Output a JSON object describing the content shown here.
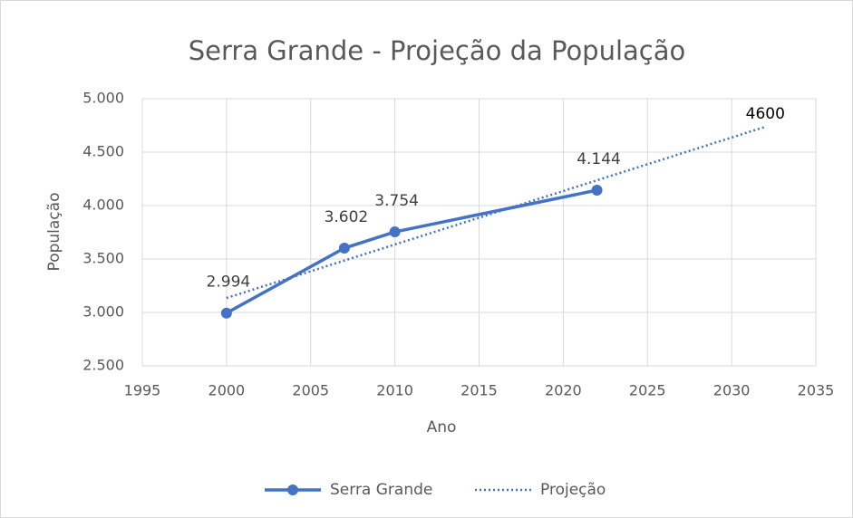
{
  "chart_data": {
    "type": "line",
    "title": "Serra Grande - Projeção da População",
    "x_label": "Ano",
    "y_label": "População",
    "xlim": [
      1995,
      2035
    ],
    "xticks": [
      1995,
      2000,
      2005,
      2010,
      2015,
      2020,
      2025,
      2030,
      2035
    ],
    "ylim": [
      2500,
      5000
    ],
    "yticks": [
      {
        "value": 2500,
        "label": "2.500"
      },
      {
        "value": 3000,
        "label": "3.000"
      },
      {
        "value": 3500,
        "label": "3.500"
      },
      {
        "value": 4000,
        "label": "4.000"
      },
      {
        "value": 4500,
        "label": "4.500"
      },
      {
        "value": 5000,
        "label": "5.000"
      }
    ],
    "grid": true,
    "legend": "bottom",
    "series": [
      {
        "name": "Serra Grande",
        "color": "#4472c4",
        "style": "solid",
        "markers": true,
        "x": [
          2000,
          2007,
          2010,
          2022
        ],
        "values": [
          2994,
          3602,
          3754,
          4144
        ],
        "value_labels": [
          "2.994",
          "3.602",
          "3.754",
          "4.144"
        ]
      },
      {
        "name": "Projeção",
        "color": "#4472c4",
        "style": "dotted",
        "markers": false,
        "x": [
          2000,
          2032
        ],
        "values": [
          3135,
          4737
        ]
      }
    ],
    "annotations": [
      {
        "text": "4600"
      }
    ]
  }
}
